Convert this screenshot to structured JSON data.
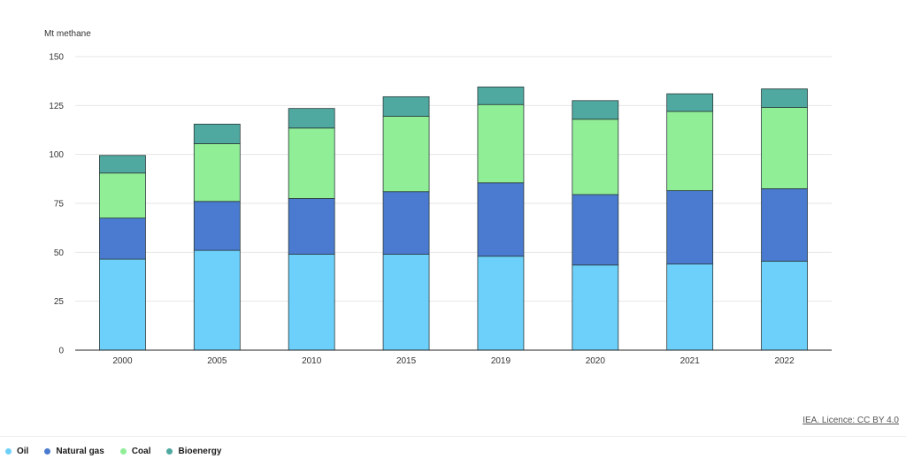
{
  "chart_data": {
    "type": "bar",
    "stacked": true,
    "unit_label": "Mt methane",
    "categories": [
      "2000",
      "2005",
      "2010",
      "2015",
      "2019",
      "2020",
      "2021",
      "2022"
    ],
    "series": [
      {
        "name": "Oil",
        "color": "#6dd0fb",
        "values": [
          46.5,
          51,
          49,
          49,
          48,
          43.5,
          44,
          45.5
        ]
      },
      {
        "name": "Natural gas",
        "color": "#4a7bd0",
        "values": [
          21,
          25,
          28.5,
          32,
          37.5,
          36,
          37.5,
          37
        ]
      },
      {
        "name": "Coal",
        "color": "#90ee96",
        "values": [
          23,
          29.5,
          36,
          38.5,
          40,
          38.5,
          40.5,
          41.5
        ]
      },
      {
        "name": "Bioenergy",
        "color": "#4fa9a0",
        "values": [
          9,
          10,
          10,
          10,
          9,
          9.5,
          9,
          9.5
        ]
      }
    ],
    "yticks": [
      0,
      25,
      50,
      75,
      100,
      125,
      150
    ],
    "ylim": [
      0,
      150
    ],
    "grid": true,
    "legend_position": "bottom-left"
  },
  "source_text": "IEA. Licence: CC BY 4.0"
}
